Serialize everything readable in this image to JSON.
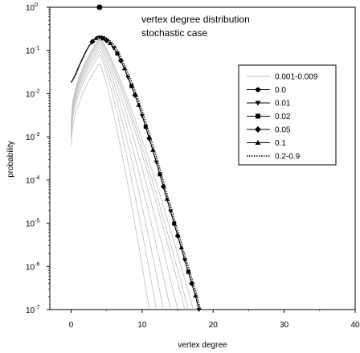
{
  "chart_data": {
    "type": "line",
    "title": "",
    "annotation": [
      "vertex degree distribution",
      "stochastic case"
    ],
    "xlabel": "vertex degree",
    "ylabel": "probability",
    "x_ticks": [
      "0",
      "10",
      "20",
      "30",
      "40"
    ],
    "y_ticks": [
      {
        "base": "10",
        "exp": "0"
      },
      {
        "base": "10",
        "exp": "-1"
      },
      {
        "base": "10",
        "exp": "-2"
      },
      {
        "base": "10",
        "exp": "-3"
      },
      {
        "base": "10",
        "exp": "-4"
      },
      {
        "base": "10",
        "exp": "-5"
      },
      {
        "base": "10",
        "exp": "-6"
      },
      {
        "base": "10",
        "exp": "-7"
      }
    ],
    "xlim": [
      -3,
      40
    ],
    "ylim": [
      1e-07,
      1
    ],
    "yscale": "log",
    "grid": false,
    "legend_position": "right",
    "legend": [
      {
        "label": "0.001-0.009",
        "marker": "none",
        "line": "solid-gray"
      },
      {
        "label": "0.0",
        "marker": "circle",
        "line": "solid"
      },
      {
        "label": "0.01",
        "marker": "triangle-down",
        "line": "solid"
      },
      {
        "label": "0.02",
        "marker": "square",
        "line": "solid"
      },
      {
        "label": "0.05",
        "marker": "diamond",
        "line": "solid"
      },
      {
        "label": "0.1",
        "marker": "triangle-up",
        "line": "solid"
      },
      {
        "label": "0.2-0.9",
        "marker": "none",
        "line": "dotted"
      }
    ],
    "series": [
      {
        "name": "0.0",
        "marker": "circle",
        "x": [
          4
        ],
        "y": [
          1.0
        ]
      },
      {
        "name": "0.1",
        "marker": "curve",
        "x": [
          0,
          0.5,
          1,
          1.5,
          2,
          2.5,
          3,
          3.5,
          4,
          4.5,
          5,
          5.5,
          6,
          6.5,
          7,
          7.5,
          8,
          8.5,
          9,
          9.5,
          10,
          10.5,
          11,
          11.5,
          12,
          12.5,
          13,
          13.5,
          14,
          14.5,
          15,
          15.5,
          16,
          16.5,
          17,
          17.5,
          18
        ],
        "y": [
          0.018,
          0.025,
          0.04,
          0.06,
          0.09,
          0.125,
          0.16,
          0.19,
          0.2,
          0.19,
          0.17,
          0.145,
          0.115,
          0.085,
          0.058,
          0.038,
          0.024,
          0.015,
          0.0092,
          0.0054,
          0.0031,
          0.0017,
          0.00092,
          0.00049,
          0.00026,
          0.000135,
          7e-05,
          3.6e-05,
          1.9e-05,
          9.8e-06,
          5.1e-06,
          2.7e-06,
          1.4e-06,
          7.5e-07,
          4e-07,
          2.1e-07,
          1e-07
        ]
      },
      {
        "name": "0.001-0.009",
        "marker": "none",
        "peaks": [
          0.05,
          0.08,
          0.1,
          0.12,
          0.14,
          0.16,
          0.18,
          0.19
        ],
        "tail_end_x": [
          11,
          12,
          13,
          14,
          15,
          16,
          16.5,
          17.2
        ]
      }
    ]
  }
}
